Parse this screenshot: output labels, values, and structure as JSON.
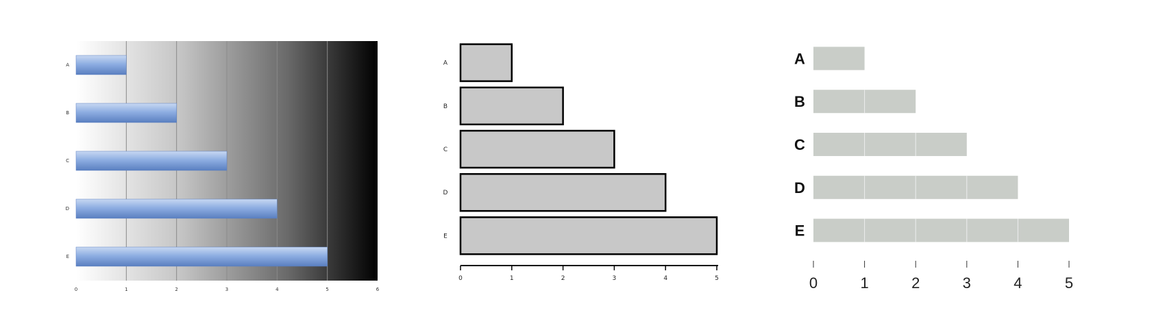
{
  "chart_data": [
    {
      "type": "bar",
      "orientation": "horizontal",
      "title": "",
      "xlabel": "",
      "ylabel": "",
      "categories": [
        "A",
        "B",
        "C",
        "D",
        "E"
      ],
      "values": [
        1,
        2,
        3,
        4,
        5
      ],
      "xlim": [
        0,
        6
      ],
      "x_ticks": [
        "0",
        "1",
        "2",
        "3",
        "4",
        "5",
        "6"
      ],
      "grid": true,
      "background": "white-to-black horizontal gradient",
      "colors": {
        "bar": "#7f9fd6",
        "bar_light": "#c8d8f2",
        "bar_dark": "#5a7fc0"
      }
    },
    {
      "type": "bar",
      "orientation": "horizontal",
      "title": "",
      "xlabel": "",
      "ylabel": "",
      "categories": [
        "A",
        "B",
        "C",
        "D",
        "E"
      ],
      "values": [
        1,
        2,
        3,
        4,
        5
      ],
      "xlim": [
        0,
        5
      ],
      "x_ticks": [
        "0",
        "1",
        "2",
        "3",
        "4",
        "5"
      ],
      "grid": false,
      "colors": {
        "bar": "#c8c8c8",
        "outline": "#000000"
      }
    },
    {
      "type": "bar",
      "orientation": "horizontal",
      "title": "",
      "xlabel": "",
      "ylabel": "",
      "categories": [
        "A",
        "B",
        "C",
        "D",
        "E"
      ],
      "values": [
        1,
        2,
        3,
        4,
        5
      ],
      "xlim": [
        0,
        5
      ],
      "x_ticks": [
        "0",
        "1",
        "2",
        "3",
        "4",
        "5"
      ],
      "grid": false,
      "colors": {
        "bar": "#c9cdc8",
        "segment_line": "#eeeeee"
      }
    }
  ]
}
